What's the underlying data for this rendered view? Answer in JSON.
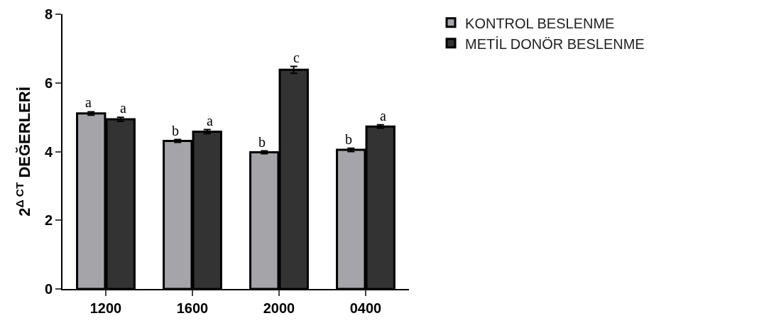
{
  "chart_data": {
    "type": "bar",
    "ylabel": "2$^{Δ CT}$ DEĞERLERİ",
    "categories": [
      "1200",
      "1600",
      "2000",
      "0400"
    ],
    "series": [
      {
        "name": "KONTROL BESLENME",
        "color": "#a5a5a9",
        "values": [
          5.11,
          4.31,
          3.98,
          4.05
        ],
        "errors": [
          0.05,
          0.04,
          0.04,
          0.05
        ]
      },
      {
        "name": "METİL DONÖR BESLENME",
        "color": "#333333",
        "values": [
          4.94,
          4.58,
          6.38,
          4.73
        ],
        "errors": [
          0.06,
          0.06,
          0.1,
          0.05
        ]
      }
    ],
    "ylim": [
      0,
      8
    ],
    "yticks": [
      0,
      2,
      4,
      6,
      8
    ],
    "grid": false,
    "legend": "top right",
    "annotations": [
      {
        "text": "a",
        "x": "1200",
        "y": 5.16
      },
      {
        "text": "a",
        "x": "1200",
        "y": 5.0
      },
      {
        "text": "b",
        "x": "1600",
        "y": 4.35
      },
      {
        "text": "a",
        "x": "1600",
        "y": 4.64
      },
      {
        "text": "b",
        "x": "2000",
        "y": 4.02
      },
      {
        "text": "c",
        "x": "2000",
        "y": 6.48
      },
      {
        "text": "b",
        "x": "0400",
        "y": 4.1
      },
      {
        "text": "a",
        "x": "0400",
        "y": 4.78
      }
    ]
  }
}
